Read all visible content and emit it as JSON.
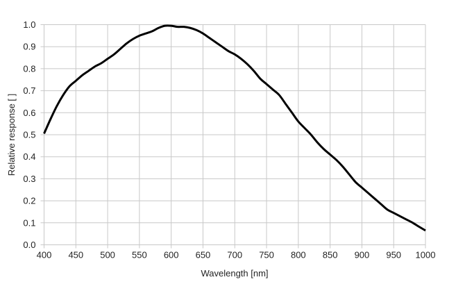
{
  "chart_data": {
    "type": "line",
    "title": "",
    "xlabel": "Wavelength [nm]",
    "ylabel": "Relative response [ ]",
    "xlim": [
      400,
      1000
    ],
    "ylim": [
      0,
      1.0
    ],
    "grid": true,
    "xticks": [
      "400",
      "450",
      "500",
      "550",
      "600",
      "650",
      "700",
      "750",
      "800",
      "850",
      "900",
      "950",
      "1000"
    ],
    "yticks": [
      "0.0",
      "0.1",
      "0.2",
      "0.3",
      "0.4",
      "0.5",
      "0.6",
      "0.7",
      "0.8",
      "0.9",
      "1.0"
    ],
    "line_color": "#000000",
    "grid_color": "#c8c8c8",
    "series": [
      {
        "x": [
          400,
          410,
          420,
          430,
          440,
          450,
          460,
          470,
          480,
          490,
          500,
          510,
          520,
          530,
          540,
          550,
          560,
          570,
          580,
          590,
          600,
          610,
          620,
          630,
          640,
          650,
          660,
          670,
          680,
          690,
          700,
          710,
          720,
          730,
          740,
          750,
          760,
          770,
          780,
          790,
          800,
          810,
          820,
          830,
          840,
          850,
          860,
          870,
          880,
          890,
          900,
          910,
          920,
          930,
          940,
          950,
          960,
          970,
          980,
          990,
          1000
        ],
        "y": [
          0.505,
          0.57,
          0.63,
          0.68,
          0.72,
          0.745,
          0.77,
          0.79,
          0.81,
          0.825,
          0.845,
          0.865,
          0.89,
          0.915,
          0.935,
          0.95,
          0.96,
          0.97,
          0.985,
          0.995,
          0.995,
          0.99,
          0.99,
          0.985,
          0.975,
          0.96,
          0.94,
          0.92,
          0.9,
          0.88,
          0.865,
          0.845,
          0.82,
          0.79,
          0.755,
          0.73,
          0.705,
          0.68,
          0.64,
          0.6,
          0.56,
          0.53,
          0.5,
          0.465,
          0.435,
          0.41,
          0.385,
          0.355,
          0.32,
          0.285,
          0.26,
          0.235,
          0.21,
          0.185,
          0.16,
          0.145,
          0.13,
          0.115,
          0.1,
          0.082,
          0.065
        ]
      }
    ]
  }
}
